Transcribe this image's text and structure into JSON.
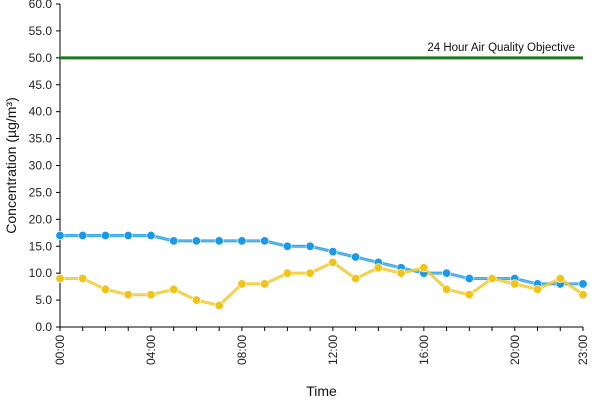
{
  "chart_data": {
    "type": "line",
    "xlabel": "Time",
    "ylabel": "Concentration (µg/m³)",
    "ylim": [
      0,
      60
    ],
    "yticks": [
      "0.0",
      "5.0",
      "10.0",
      "15.0",
      "20.0",
      "25.0",
      "30.0",
      "35.0",
      "40.0",
      "45.0",
      "50.0",
      "55.0",
      "60.0"
    ],
    "yticks_values": [
      0,
      5,
      10,
      15,
      20,
      25,
      30,
      35,
      40,
      45,
      50,
      55,
      60
    ],
    "xticks": [
      "00:00",
      "04:00",
      "08:00",
      "12:00",
      "16:00",
      "20:00",
      "23:00"
    ],
    "xticks_values": [
      0,
      4,
      8,
      12,
      16,
      20,
      23
    ],
    "x": [
      0,
      1,
      2,
      3,
      4,
      5,
      6,
      7,
      8,
      9,
      10,
      11,
      12,
      13,
      14,
      15,
      16,
      17,
      18,
      19,
      20,
      21,
      22,
      23
    ],
    "series": [
      {
        "color": "#1a9ae6",
        "values": [
          17,
          17,
          17,
          17,
          17,
          16,
          16,
          16,
          16,
          16,
          15,
          15,
          14,
          13,
          12,
          11,
          10,
          10,
          9,
          9,
          9,
          8,
          8,
          8
        ]
      },
      {
        "color": "#f0c419",
        "values": [
          9,
          9,
          7,
          6,
          6,
          7,
          5,
          4,
          8,
          8,
          10,
          10,
          12,
          9,
          11,
          10,
          11,
          7,
          6,
          9,
          8,
          7,
          9,
          6
        ]
      }
    ],
    "reference_line": {
      "value": 50,
      "label": "24 Hour Air Quality Objective",
      "color": "#1a7a1a"
    },
    "grid": false
  }
}
